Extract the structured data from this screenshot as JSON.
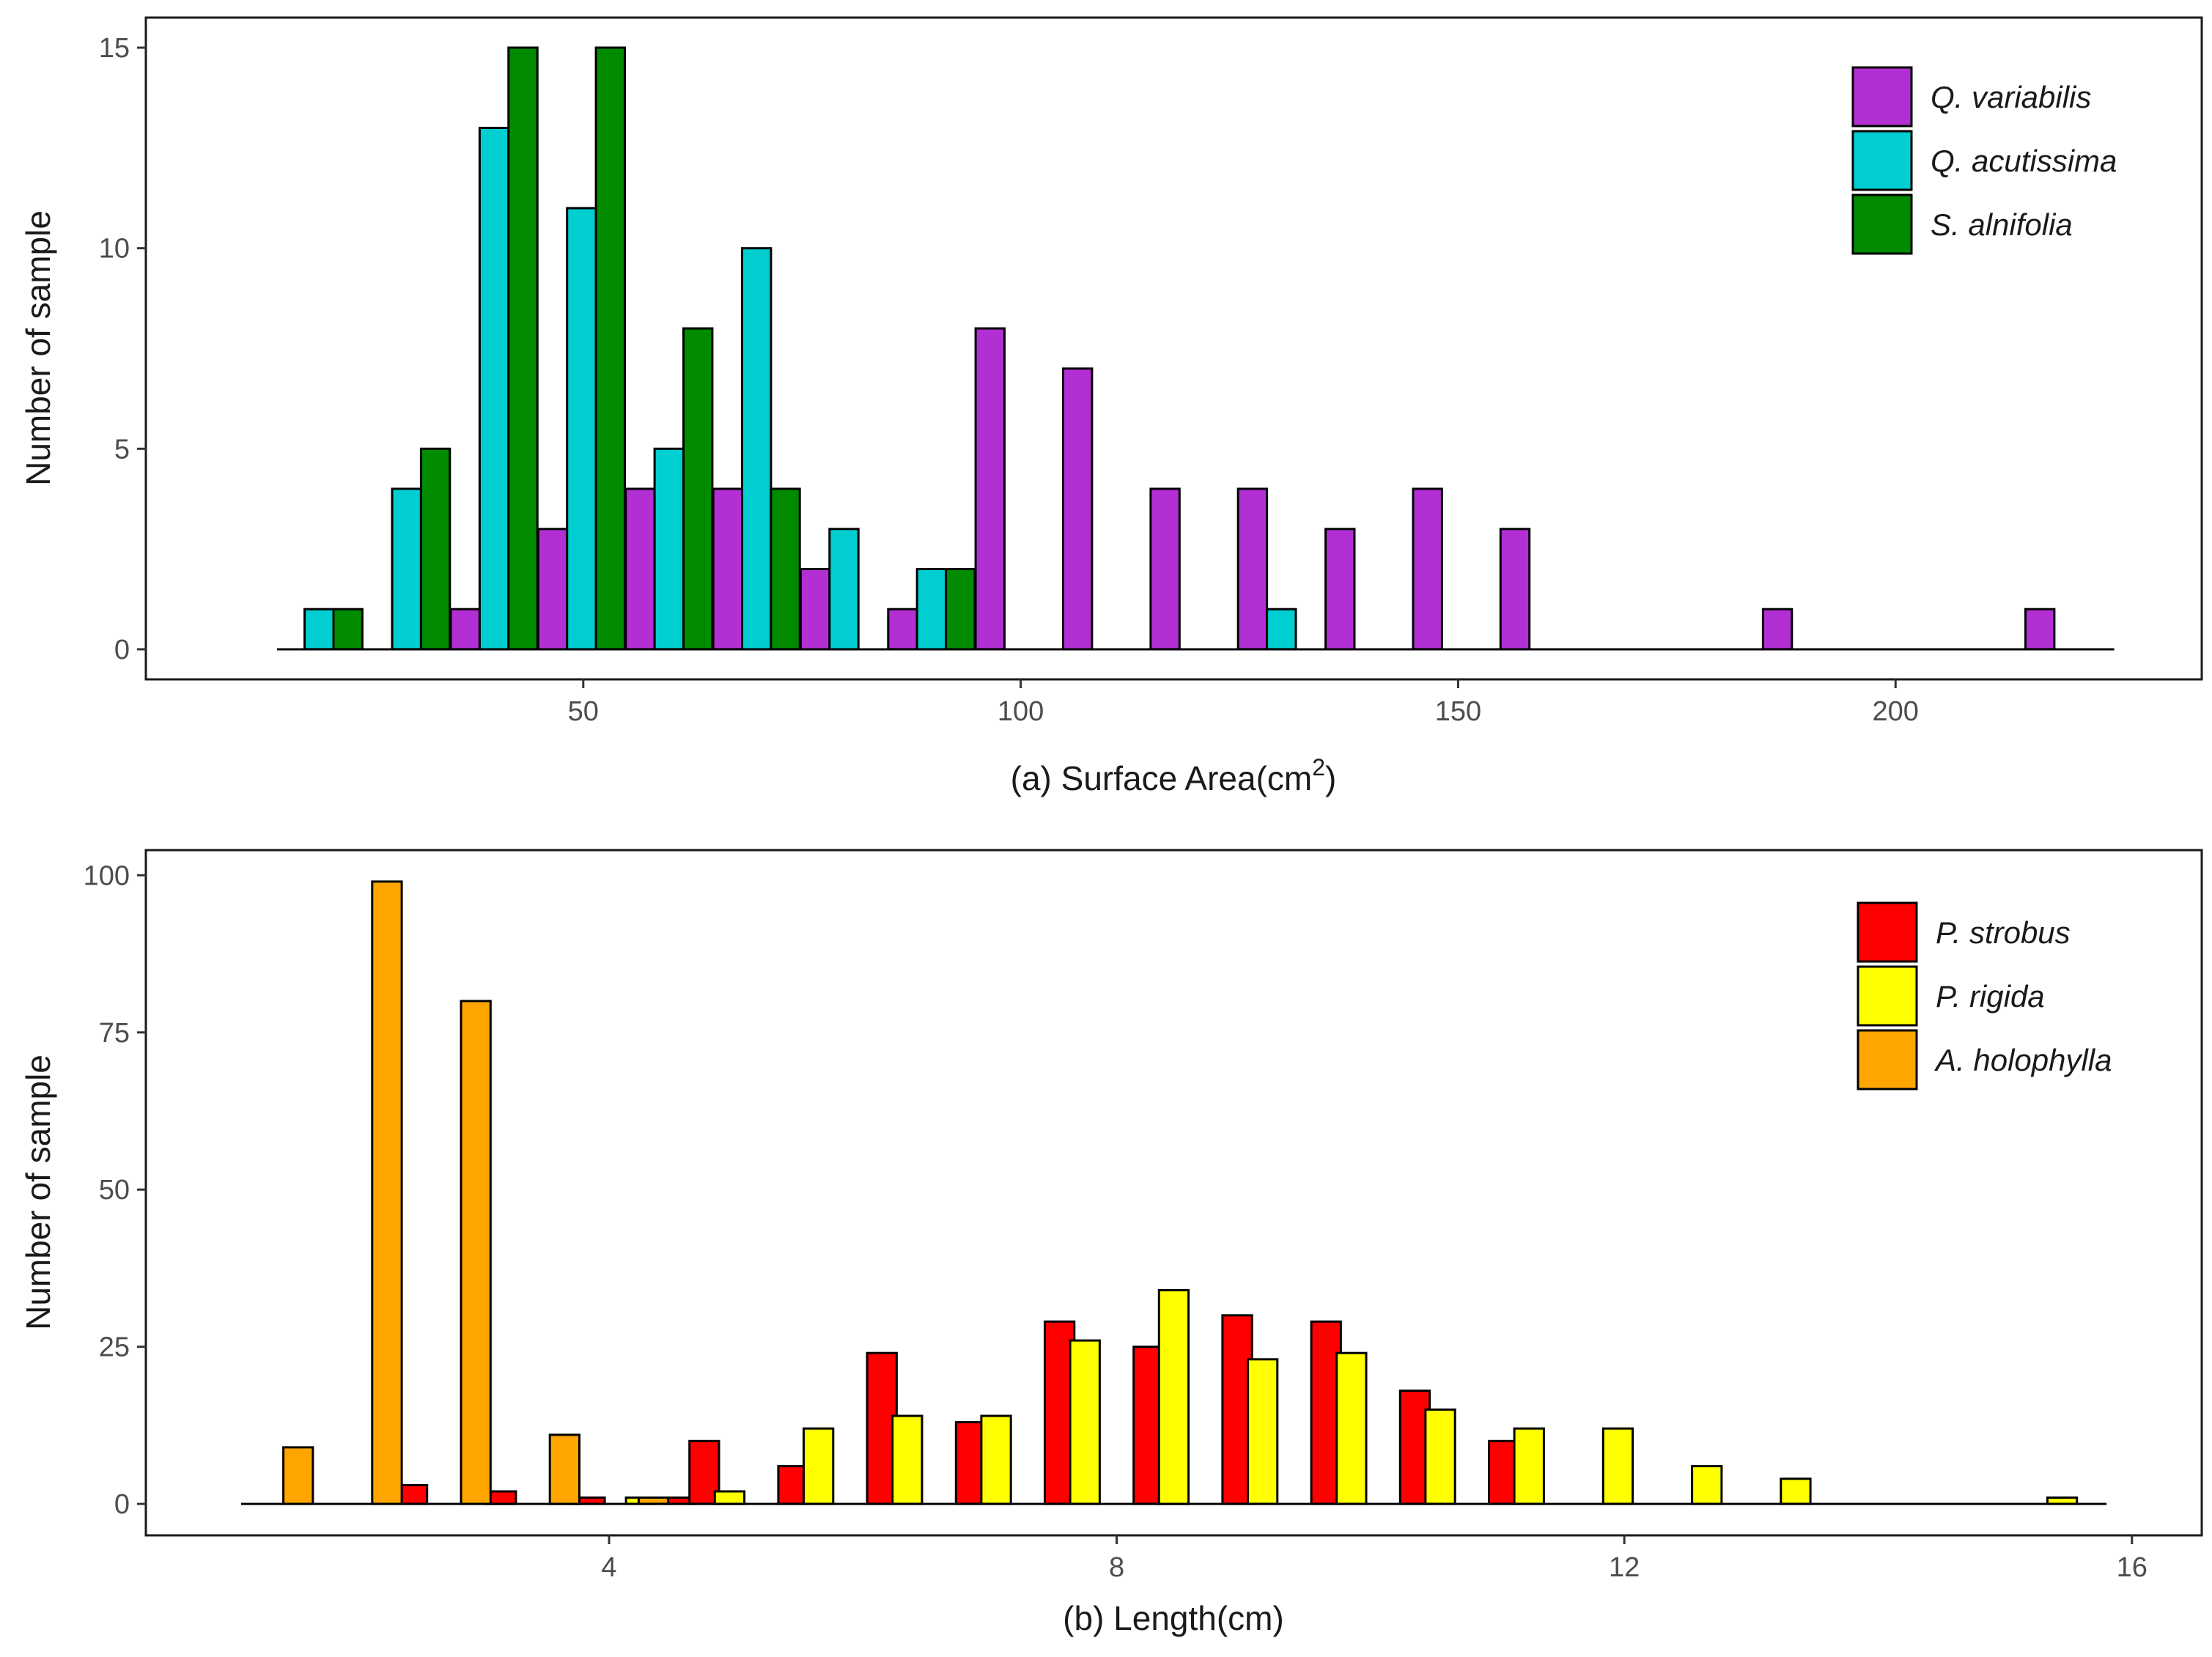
{
  "chart_data": [
    {
      "type": "bar",
      "title": "",
      "xlabel": "(a) Surface Area(cm",
      "xlabel_superscript": "2",
      "xlabel_suffix": ")",
      "ylabel": "Number of sample",
      "xlim": [
        0,
        235
      ],
      "ylim": [
        -0.75,
        15.75
      ],
      "xticks": [
        {
          "value": 50,
          "label": "50"
        },
        {
          "value": 100,
          "label": "100"
        },
        {
          "value": 150,
          "label": "150"
        },
        {
          "value": 200,
          "label": "200"
        }
      ],
      "yticks": [
        {
          "value": 0,
          "label": "0"
        },
        {
          "value": 5,
          "label": "5"
        },
        {
          "value": 10,
          "label": "10"
        },
        {
          "value": 15,
          "label": "15"
        }
      ],
      "baseline_range": [
        15,
        225
      ],
      "bar_width": 3.3,
      "legend_position": "top-right",
      "series": [
        {
          "name": "Q. variabilis",
          "color": "#B22FD3",
          "points": [
            {
              "x": 36.5,
              "y": 1
            },
            {
              "x": 46.5,
              "y": 3
            },
            {
              "x": 56.5,
              "y": 4
            },
            {
              "x": 66.5,
              "y": 4
            },
            {
              "x": 76.5,
              "y": 2
            },
            {
              "x": 86.5,
              "y": 1
            },
            {
              "x": 96.5,
              "y": 8
            },
            {
              "x": 106.5,
              "y": 7
            },
            {
              "x": 116.5,
              "y": 4
            },
            {
              "x": 126.5,
              "y": 4
            },
            {
              "x": 136.5,
              "y": 3
            },
            {
              "x": 146.5,
              "y": 4
            },
            {
              "x": 156.5,
              "y": 3
            },
            {
              "x": 186.5,
              "y": 1
            },
            {
              "x": 216.5,
              "y": 1
            }
          ]
        },
        {
          "name": "Q. acutissima",
          "color": "#00CED1",
          "points": [
            {
              "x": 19.8,
              "y": 1
            },
            {
              "x": 29.8,
              "y": 4
            },
            {
              "x": 39.8,
              "y": 13
            },
            {
              "x": 49.8,
              "y": 11
            },
            {
              "x": 59.8,
              "y": 5
            },
            {
              "x": 69.8,
              "y": 10
            },
            {
              "x": 79.8,
              "y": 3
            },
            {
              "x": 89.8,
              "y": 2
            },
            {
              "x": 129.8,
              "y": 1
            }
          ]
        },
        {
          "name": "S. alnifolia",
          "color": "#008B00",
          "points": [
            {
              "x": 23.1,
              "y": 1
            },
            {
              "x": 33.1,
              "y": 5
            },
            {
              "x": 43.1,
              "y": 15
            },
            {
              "x": 53.1,
              "y": 15
            },
            {
              "x": 63.1,
              "y": 8
            },
            {
              "x": 73.1,
              "y": 4
            },
            {
              "x": 93.1,
              "y": 2
            }
          ]
        }
      ]
    },
    {
      "type": "bar",
      "title": "",
      "xlabel": "(b) Length(cm)",
      "xlabel_superscript": "",
      "xlabel_suffix": "",
      "ylabel": "Number of sample",
      "xlim": [
        0.35,
        16.55
      ],
      "ylim": [
        -5,
        104
      ],
      "xticks": [
        {
          "value": 4,
          "label": "4"
        },
        {
          "value": 8,
          "label": "8"
        },
        {
          "value": 12,
          "label": "12"
        },
        {
          "value": 16,
          "label": "16"
        }
      ],
      "yticks": [
        {
          "value": 0,
          "label": "0"
        },
        {
          "value": 25,
          "label": "25"
        },
        {
          "value": 50,
          "label": "50"
        },
        {
          "value": 75,
          "label": "75"
        },
        {
          "value": 100,
          "label": "100"
        }
      ],
      "baseline_range": [
        1.1,
        15.8
      ],
      "bar_width": 0.233,
      "legend_position": "top-right",
      "series": [
        {
          "name": "P. strobus",
          "color": "#FF0000",
          "points": [
            {
              "x": 2.45,
              "y": 3
            },
            {
              "x": 3.15,
              "y": 2
            },
            {
              "x": 3.85,
              "y": 1
            },
            {
              "x": 4.55,
              "y": 1
            },
            {
              "x": 4.75,
              "y": 10
            },
            {
              "x": 5.45,
              "y": 6
            },
            {
              "x": 6.15,
              "y": 24
            },
            {
              "x": 6.85,
              "y": 13
            },
            {
              "x": 7.55,
              "y": 29
            },
            {
              "x": 8.25,
              "y": 25
            },
            {
              "x": 8.95,
              "y": 30
            },
            {
              "x": 9.65,
              "y": 29
            },
            {
              "x": 10.35,
              "y": 18
            },
            {
              "x": 11.05,
              "y": 10
            }
          ]
        },
        {
          "name": "P. rigida",
          "color": "#FFFF00",
          "points": [
            {
              "x": 4.25,
              "y": 1
            },
            {
              "x": 4.95,
              "y": 2
            },
            {
              "x": 5.65,
              "y": 12
            },
            {
              "x": 6.35,
              "y": 14
            },
            {
              "x": 7.05,
              "y": 14
            },
            {
              "x": 7.75,
              "y": 26
            },
            {
              "x": 8.45,
              "y": 34
            },
            {
              "x": 9.15,
              "y": 23
            },
            {
              "x": 9.85,
              "y": 24
            },
            {
              "x": 10.55,
              "y": 15
            },
            {
              "x": 11.25,
              "y": 12
            },
            {
              "x": 11.95,
              "y": 12
            },
            {
              "x": 12.65,
              "y": 6
            },
            {
              "x": 13.35,
              "y": 4
            },
            {
              "x": 15.45,
              "y": 1
            }
          ]
        },
        {
          "name": "A. holophylla",
          "color": "#FFA500",
          "points": [
            {
              "x": 1.55,
              "y": 9
            },
            {
              "x": 2.25,
              "y": 99
            },
            {
              "x": 2.95,
              "y": 80
            },
            {
              "x": 3.65,
              "y": 11
            },
            {
              "x": 4.35,
              "y": 1
            }
          ]
        }
      ]
    }
  ]
}
